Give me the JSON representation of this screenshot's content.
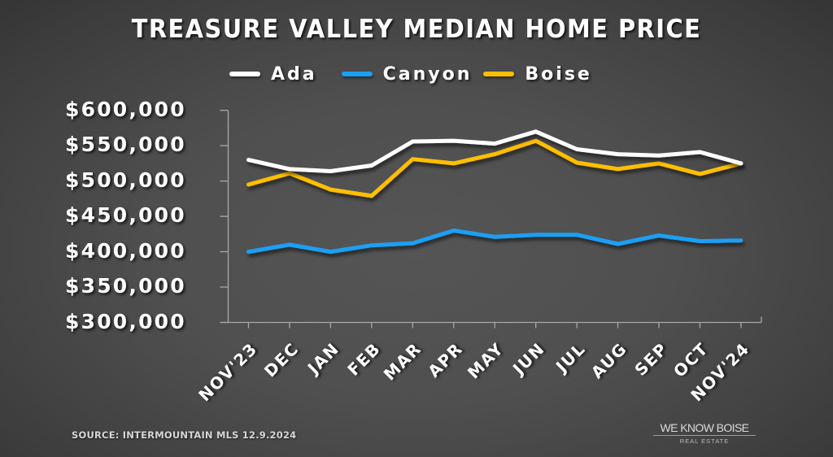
{
  "title": "TREASURE VALLEY MEDIAN HOME PRICE",
  "legend": [
    {
      "label": "Ada",
      "color": "#ffffff"
    },
    {
      "label": "Canyon",
      "color": "#1a9ff5"
    },
    {
      "label": "Boise",
      "color": "#ffbf00"
    }
  ],
  "y_axis": {
    "labels": [
      "$600,000",
      "$550,000",
      "$500,000",
      "$450,000",
      "$400,000",
      "$350,000",
      "$300,000"
    ]
  },
  "x_axis": {
    "labels": [
      "NOV'23",
      "DEC",
      "JAN",
      "FEB",
      "MAR",
      "APR",
      "MAY",
      "JUN",
      "JUL",
      "AUG",
      "SEP",
      "OCT",
      "NOV'24"
    ]
  },
  "footer": {
    "source": "SOURCE: INTERMOUNTAIN MLS 12.9.2024",
    "logo_main": "WE KNOW BOISE",
    "logo_sub": "REAL ESTATE"
  },
  "chart_data": {
    "type": "line",
    "title": "TREASURE VALLEY MEDIAN HOME PRICE",
    "xlabel": "",
    "ylabel": "",
    "categories": [
      "NOV'23",
      "DEC",
      "JAN",
      "FEB",
      "MAR",
      "APR",
      "MAY",
      "JUN",
      "JUL",
      "AUG",
      "SEP",
      "OCT",
      "NOV'24"
    ],
    "series": [
      {
        "name": "Ada",
        "color": "#ffffff",
        "values": [
          530000,
          517000,
          514000,
          522000,
          556000,
          557000,
          553000,
          570000,
          545000,
          538000,
          536000,
          541000,
          525000
        ]
      },
      {
        "name": "Canyon",
        "color": "#1a9ff5",
        "values": [
          400000,
          410000,
          400000,
          409000,
          412000,
          430000,
          421000,
          424000,
          424000,
          411000,
          423000,
          415000,
          416000
        ]
      },
      {
        "name": "Boise",
        "color": "#ffbf00",
        "values": [
          495000,
          511000,
          488000,
          479000,
          531000,
          525000,
          538000,
          557000,
          526000,
          517000,
          525000,
          510000,
          525000
        ]
      }
    ],
    "ylim": [
      300000,
      600000
    ],
    "y_ticks": [
      300000,
      350000,
      400000,
      450000,
      500000,
      550000,
      600000
    ],
    "grid": false,
    "legend_position": "top"
  }
}
